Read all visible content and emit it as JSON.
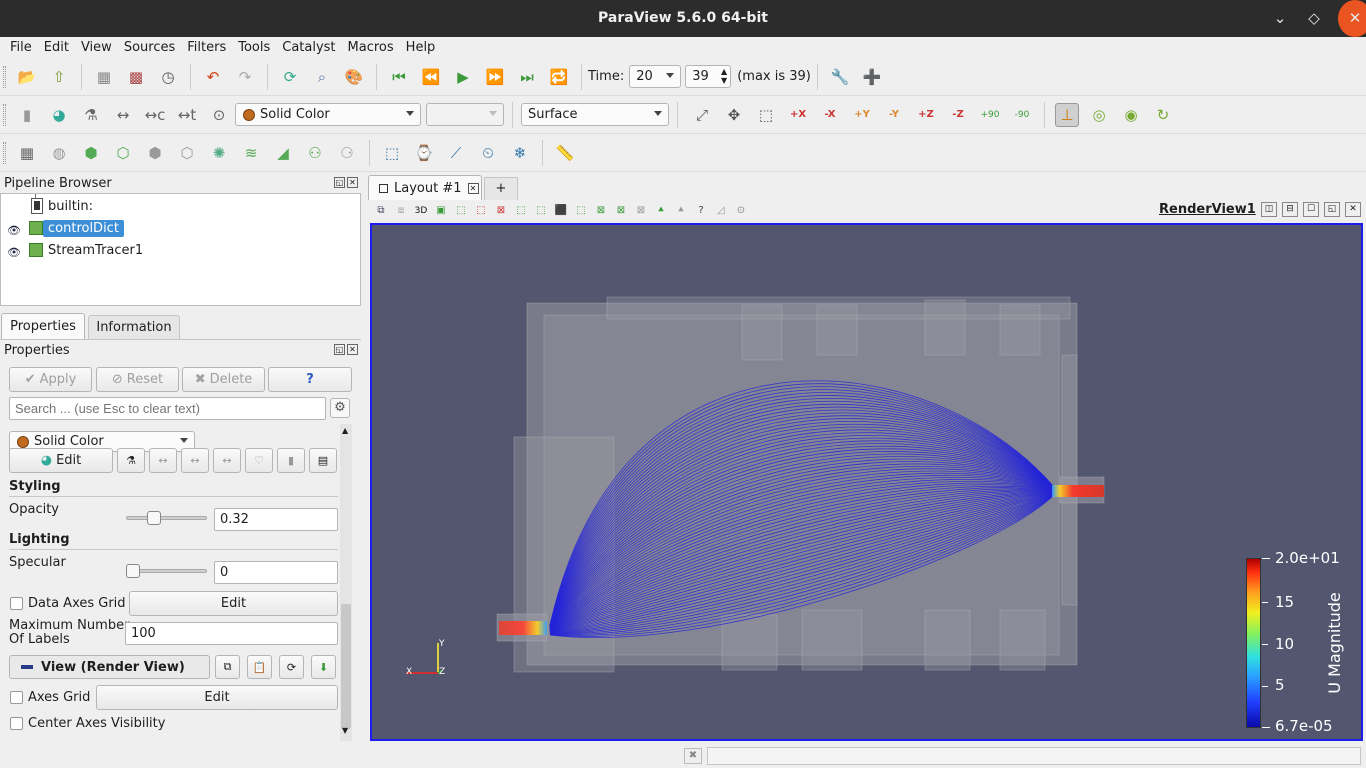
{
  "window": {
    "title": "ParaView 5.6.0 64-bit"
  },
  "menu": [
    "File",
    "Edit",
    "View",
    "Sources",
    "Filters",
    "Tools",
    "Catalyst",
    "Macros",
    "Help"
  ],
  "time_toolbar": {
    "label": "Time:",
    "time_value": "20",
    "step_value": "39",
    "max_text": "(max is 39)"
  },
  "rep_toolbar": {
    "color_mode": "Solid Color",
    "component": "",
    "representation": "Surface"
  },
  "camera_labels": {
    "plus_x": "+X",
    "minus_x": "-X",
    "plus_y": "+Y",
    "minus_y": "-Y",
    "plus_z": "+Z",
    "minus_z": "-Z",
    "rot_plus": "+90",
    "rot_minus": "-90"
  },
  "pipeline": {
    "title": "Pipeline Browser",
    "items": [
      {
        "label": "builtin:"
      },
      {
        "label": "controlDict",
        "selected": true
      },
      {
        "label": "StreamTracer1"
      }
    ]
  },
  "tabs": {
    "properties": "Properties",
    "information": "Information"
  },
  "properties": {
    "title": "Properties",
    "apply": "Apply",
    "reset": "Reset",
    "delete": "Delete",
    "help": "?",
    "search_placeholder": "Search ... (use Esc to clear text)",
    "color_mode": "Solid Color",
    "edit": "Edit",
    "styling": "Styling",
    "opacity_label": "Opacity",
    "opacity_value": "0.32",
    "opacity_fraction": 0.32,
    "lighting": "Lighting",
    "specular_label": "Specular",
    "specular_value": "0",
    "specular_fraction": 0,
    "data_axes_grid": "Data Axes Grid",
    "data_axes_edit": "Edit",
    "max_labels_line1": "Maximum Number",
    "max_labels_line2": "Of Labels",
    "max_labels_value": "100",
    "view_section": "View (Render View)",
    "axes_grid": "Axes Grid",
    "axes_grid_edit": "Edit",
    "center_axes": "Center Axes Visibility"
  },
  "layout": {
    "tab": "Layout #1",
    "add": "+",
    "view_name": "RenderView1",
    "btn_3d": "3D"
  },
  "legend": {
    "title": "U Magnitude",
    "labels": [
      "2.0e+01",
      "15",
      "10",
      "5",
      "6.7e-05"
    ]
  },
  "orientation_axes": {
    "x": "X",
    "y": "Y",
    "z": "Z"
  },
  "colors": {
    "background": "#52566e",
    "selection": "#3d8fd8",
    "stream": "#1e1ee0"
  }
}
